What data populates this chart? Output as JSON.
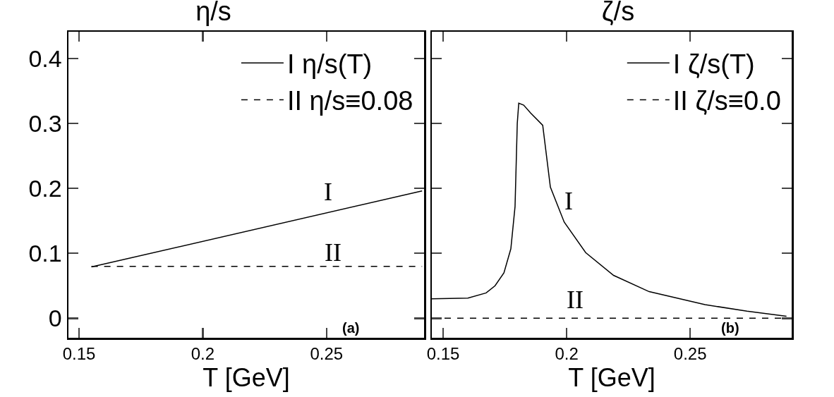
{
  "chart_data": [
    {
      "type": "line",
      "title": "η/s",
      "xlabel": "T [GeV]",
      "xlim": [
        0.1457,
        0.2894
      ],
      "ylim": [
        -0.03,
        0.441
      ],
      "xticks": [
        0.15,
        0.2,
        0.25
      ],
      "yticks": [
        0,
        0.1,
        0.2,
        0.3,
        0.4
      ],
      "grid": false,
      "legend": "top right",
      "series": [
        {
          "name": "I η/s(T)",
          "color": "#000000",
          "line_style": "solid",
          "x": [
            0.155,
            0.2886
          ],
          "values": [
            0.079,
            0.196
          ]
        },
        {
          "name": "II η/s≡0.08",
          "color": "#000000",
          "line_style": "dashed",
          "x": [
            0.155,
            0.2886
          ],
          "values": [
            0.08,
            0.08
          ]
        }
      ],
      "annotations": [
        "I",
        "II",
        "(a)"
      ]
    },
    {
      "type": "line",
      "title": "ζ/s",
      "xlabel": "T [GeV]",
      "xlim": [
        0.1454,
        0.2911
      ],
      "ylim": [
        -0.03,
        0.441
      ],
      "xticks": [
        0.15,
        0.2,
        0.25
      ],
      "yticks": [
        0,
        0.1,
        0.2,
        0.3,
        0.4
      ],
      "grid": false,
      "legend": "top right",
      "tick_labels": "x",
      "series": [
        {
          "name": "I ζ/s(T)",
          "color": "#000000",
          "line_style": "solid",
          "x": [
            0.1454,
            0.16,
            0.1674,
            0.171,
            0.1746,
            0.1774,
            0.1791,
            0.18,
            0.1806,
            0.1826,
            0.1854,
            0.1903,
            0.1934,
            0.199,
            0.2077,
            0.219,
            0.2334,
            0.256,
            0.273,
            0.289
          ],
          "values": [
            0.03,
            0.031,
            0.039,
            0.05,
            0.07,
            0.107,
            0.172,
            0.3,
            0.331,
            0.328,
            0.316,
            0.297,
            0.202,
            0.148,
            0.101,
            0.066,
            0.041,
            0.021,
            0.011,
            0.003
          ]
        },
        {
          "name": "II ζ/s≡0.0",
          "color": "#000000",
          "line_style": "dashed",
          "x": [
            0.1454,
            0.2911
          ],
          "values": [
            0,
            0
          ]
        }
      ],
      "annotations": [
        "I",
        "II",
        "(b)"
      ]
    }
  ]
}
